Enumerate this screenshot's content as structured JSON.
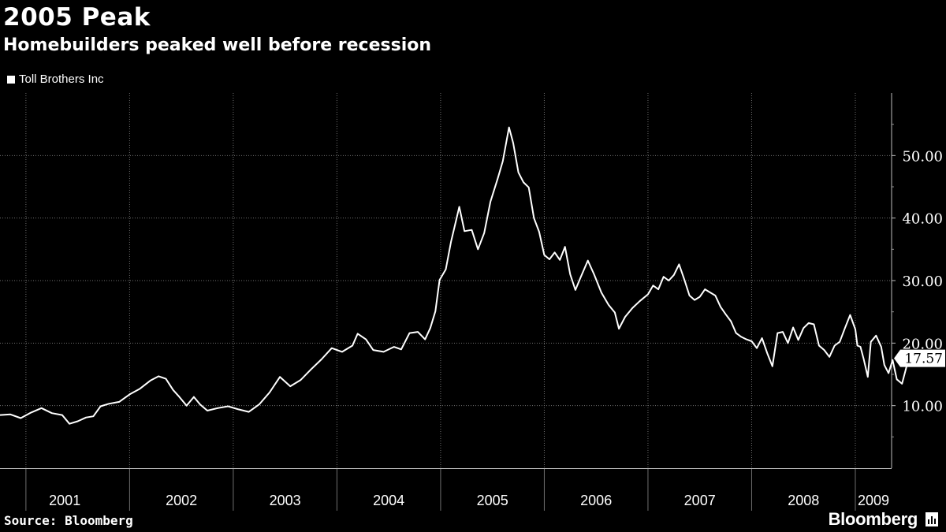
{
  "header": {
    "title": "2005 Peak",
    "subtitle": "Homebuilders peaked well before recession"
  },
  "legend": {
    "label": "Toll Brothers Inc"
  },
  "footer": {
    "source": "Source: Bloomberg",
    "brand": "Bloomberg",
    "brand_icon": "bloomberg-chart-icon"
  },
  "colors": {
    "background": "#000000",
    "line": "#ffffff",
    "grid": "#6f6f6f"
  },
  "chart_data": {
    "type": "line",
    "title": "2005 Peak",
    "subtitle": "Homebuilders peaked well before recession",
    "xlabel": "",
    "ylabel": "",
    "xlim": [
      2000.75,
      2009.35
    ],
    "ylim": [
      0,
      60
    ],
    "yticks": [
      10,
      20,
      30,
      40,
      50
    ],
    "ytick_labels": [
      "10.00",
      "20.00",
      "30.00",
      "40.00",
      "50.00"
    ],
    "x_categories": [
      "2001",
      "2002",
      "2003",
      "2004",
      "2005",
      "2006",
      "2007",
      "2008",
      "2009"
    ],
    "x_boundaries": [
      2001,
      2002,
      2003,
      2004,
      2005,
      2006,
      2007,
      2008,
      2009
    ],
    "grid": true,
    "y_axis_position": "right",
    "last_value_label": "17.57",
    "series": [
      {
        "name": "Toll Brothers Inc",
        "points": [
          [
            2000.75,
            8.5
          ],
          [
            2000.85,
            8.6
          ],
          [
            2000.95,
            8.0
          ],
          [
            2001.05,
            8.9
          ],
          [
            2001.15,
            9.6
          ],
          [
            2001.25,
            8.8
          ],
          [
            2001.35,
            8.5
          ],
          [
            2001.42,
            7.1
          ],
          [
            2001.5,
            7.5
          ],
          [
            2001.58,
            8.1
          ],
          [
            2001.65,
            8.3
          ],
          [
            2001.72,
            9.9
          ],
          [
            2001.8,
            10.3
          ],
          [
            2001.9,
            10.6
          ],
          [
            2002.0,
            11.8
          ],
          [
            2002.1,
            12.7
          ],
          [
            2002.2,
            14.0
          ],
          [
            2002.28,
            14.7
          ],
          [
            2002.35,
            14.3
          ],
          [
            2002.42,
            12.5
          ],
          [
            2002.48,
            11.4
          ],
          [
            2002.55,
            10.0
          ],
          [
            2002.62,
            11.4
          ],
          [
            2002.68,
            10.2
          ],
          [
            2002.75,
            9.2
          ],
          [
            2002.85,
            9.6
          ],
          [
            2002.95,
            9.9
          ],
          [
            2003.05,
            9.4
          ],
          [
            2003.15,
            9.0
          ],
          [
            2003.25,
            10.2
          ],
          [
            2003.35,
            12.1
          ],
          [
            2003.45,
            14.6
          ],
          [
            2003.55,
            13.1
          ],
          [
            2003.65,
            14.1
          ],
          [
            2003.75,
            15.8
          ],
          [
            2003.85,
            17.4
          ],
          [
            2003.95,
            19.2
          ],
          [
            2004.05,
            18.6
          ],
          [
            2004.15,
            19.6
          ],
          [
            2004.2,
            21.5
          ],
          [
            2004.28,
            20.6
          ],
          [
            2004.35,
            18.9
          ],
          [
            2004.45,
            18.6
          ],
          [
            2004.55,
            19.4
          ],
          [
            2004.62,
            19.0
          ],
          [
            2004.7,
            21.6
          ],
          [
            2004.78,
            21.8
          ],
          [
            2004.85,
            20.6
          ],
          [
            2004.9,
            22.4
          ],
          [
            2004.95,
            25.1
          ],
          [
            2004.99,
            30.1
          ],
          [
            2005.05,
            31.8
          ],
          [
            2005.1,
            36.2
          ],
          [
            2005.15,
            39.7
          ],
          [
            2005.18,
            41.8
          ],
          [
            2005.23,
            37.9
          ],
          [
            2005.3,
            38.1
          ],
          [
            2005.36,
            35.0
          ],
          [
            2005.42,
            37.6
          ],
          [
            2005.48,
            42.6
          ],
          [
            2005.55,
            46.3
          ],
          [
            2005.6,
            49.1
          ],
          [
            2005.66,
            54.5
          ],
          [
            2005.7,
            52.0
          ],
          [
            2005.75,
            47.3
          ],
          [
            2005.8,
            45.7
          ],
          [
            2005.85,
            44.9
          ],
          [
            2005.9,
            40.0
          ],
          [
            2005.95,
            37.8
          ],
          [
            2006.0,
            34.1
          ],
          [
            2006.05,
            33.4
          ],
          [
            2006.1,
            34.5
          ],
          [
            2006.15,
            33.3
          ],
          [
            2006.2,
            35.4
          ],
          [
            2006.25,
            31.0
          ],
          [
            2006.3,
            28.5
          ],
          [
            2006.35,
            30.5
          ],
          [
            2006.42,
            33.2
          ],
          [
            2006.48,
            31.0
          ],
          [
            2006.55,
            28.1
          ],
          [
            2006.62,
            26.1
          ],
          [
            2006.68,
            24.9
          ],
          [
            2006.72,
            22.3
          ],
          [
            2006.78,
            24.2
          ],
          [
            2006.85,
            25.6
          ],
          [
            2006.92,
            26.7
          ],
          [
            2007.0,
            27.8
          ],
          [
            2007.05,
            29.2
          ],
          [
            2007.1,
            28.6
          ],
          [
            2007.15,
            30.6
          ],
          [
            2007.2,
            30.0
          ],
          [
            2007.25,
            30.9
          ],
          [
            2007.3,
            32.6
          ],
          [
            2007.35,
            30.2
          ],
          [
            2007.4,
            27.6
          ],
          [
            2007.45,
            26.9
          ],
          [
            2007.5,
            27.4
          ],
          [
            2007.55,
            28.6
          ],
          [
            2007.6,
            28.1
          ],
          [
            2007.65,
            27.6
          ],
          [
            2007.7,
            25.8
          ],
          [
            2007.75,
            24.6
          ],
          [
            2007.8,
            23.5
          ],
          [
            2007.85,
            21.6
          ],
          [
            2007.9,
            21.0
          ],
          [
            2007.95,
            20.6
          ],
          [
            2008.0,
            20.3
          ],
          [
            2008.05,
            19.2
          ],
          [
            2008.1,
            20.8
          ],
          [
            2008.15,
            18.4
          ],
          [
            2008.2,
            16.3
          ],
          [
            2008.25,
            21.6
          ],
          [
            2008.3,
            21.8
          ],
          [
            2008.35,
            20.0
          ],
          [
            2008.4,
            22.5
          ],
          [
            2008.45,
            20.5
          ],
          [
            2008.5,
            22.4
          ],
          [
            2008.55,
            23.2
          ],
          [
            2008.6,
            23.0
          ],
          [
            2008.65,
            19.6
          ],
          [
            2008.7,
            18.9
          ],
          [
            2008.75,
            17.8
          ],
          [
            2008.8,
            19.6
          ],
          [
            2008.85,
            20.2
          ],
          [
            2008.9,
            22.4
          ],
          [
            2008.95,
            24.5
          ],
          [
            2009.0,
            22.2
          ],
          [
            2009.02,
            19.6
          ],
          [
            2009.05,
            19.4
          ],
          [
            2009.08,
            17.5
          ],
          [
            2009.12,
            14.6
          ],
          [
            2009.15,
            20.2
          ],
          [
            2009.2,
            21.2
          ],
          [
            2009.25,
            19.4
          ],
          [
            2009.28,
            16.5
          ],
          [
            2009.32,
            15.2
          ],
          [
            2009.36,
            17.3
          ],
          [
            2009.4,
            14.2
          ],
          [
            2009.45,
            13.5
          ],
          [
            2009.5,
            16.6
          ],
          [
            2009.55,
            17.57
          ]
        ]
      }
    ]
  }
}
